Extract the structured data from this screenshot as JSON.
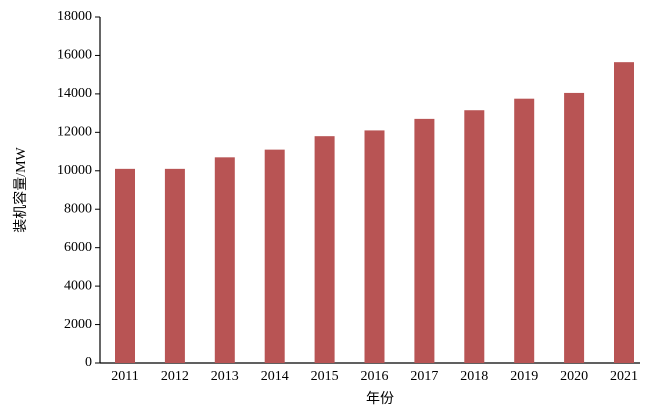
{
  "chart_data": {
    "type": "bar",
    "x_label": "年份",
    "y_label": "装机容量/MW",
    "categories": [
      "2011",
      "2012",
      "2013",
      "2014",
      "2015",
      "2016",
      "2017",
      "2018",
      "2019",
      "2020",
      "2021"
    ],
    "values": [
      10100,
      10100,
      10700,
      11100,
      11800,
      12100,
      12700,
      13150,
      13750,
      14050,
      15650
    ],
    "color": "#b85454",
    "ylim": [
      0,
      18000
    ],
    "yticks": [
      0,
      2000,
      4000,
      6000,
      8000,
      10000,
      12000,
      14000,
      16000,
      18000
    ],
    "grid": false
  }
}
